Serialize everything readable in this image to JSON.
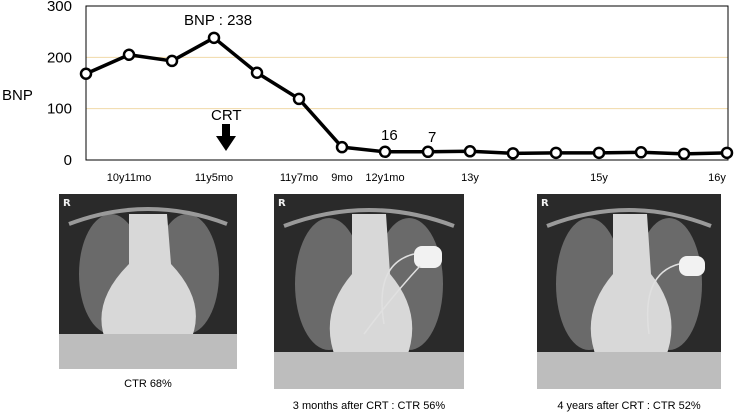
{
  "chart_data": {
    "type": "line",
    "ylabel": "BNP",
    "ylim": [
      0,
      300
    ],
    "yticks": [
      0,
      100,
      200,
      300
    ],
    "grid": "horizontal",
    "points": [
      {
        "x_label": "",
        "y": 168
      },
      {
        "x_label": "10y11mo",
        "y": 205
      },
      {
        "x_label": "",
        "y": 193
      },
      {
        "x_label": "11y5mo",
        "y": 238
      },
      {
        "x_label": "",
        "y": 170
      },
      {
        "x_label": "11y7mo",
        "y": 119
      },
      {
        "x_label": "9mo",
        "y": 25
      },
      {
        "x_label": "12y1mo",
        "y": 16
      },
      {
        "x_label": "",
        "y": 16
      },
      {
        "x_label": "13y",
        "y": 17
      },
      {
        "x_label": "",
        "y": 13
      },
      {
        "x_label": "",
        "y": 14
      },
      {
        "x_label": "15y",
        "y": 14
      },
      {
        "x_label": "",
        "y": 15
      },
      {
        "x_label": "",
        "y": 12
      },
      {
        "x_label": "16y",
        "y": 14
      }
    ],
    "x_tick_labels": [
      "10y11mo",
      "11y5mo",
      "11y7mo",
      "9mo",
      "12y1mo",
      "13y",
      "15y",
      "16y"
    ],
    "annotations": {
      "peak_label": "BNP : 238",
      "value_label_1": "16",
      "value_label_2": "7",
      "crt_label": "CRT"
    }
  },
  "xrays": [
    {
      "caption": "CTR 68%",
      "marker": "R",
      "device": false
    },
    {
      "caption": "3 months after CRT : CTR 56%",
      "marker": "R",
      "device": true
    },
    {
      "caption": "4 years after CRT : CTR 52%",
      "marker": "R",
      "device": true
    }
  ],
  "colors": {
    "line": "#000000",
    "marker_fill": "#ffffff",
    "grid": "#f0d9a8",
    "xray_bg": "#1a1a1a"
  }
}
